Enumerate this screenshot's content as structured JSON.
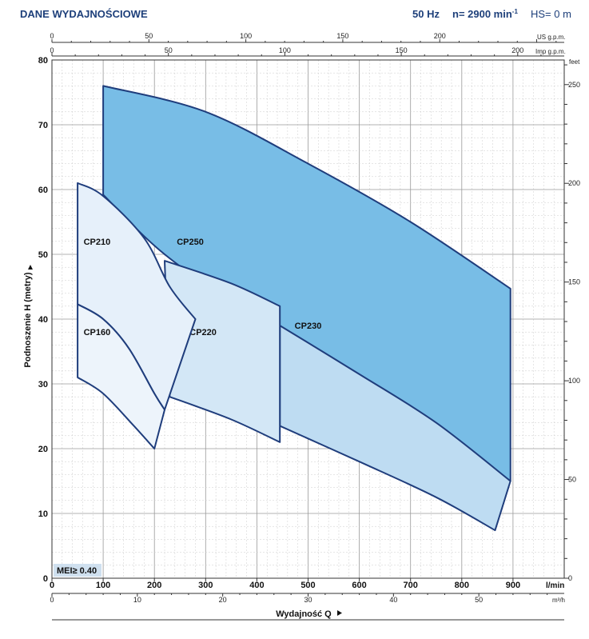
{
  "header": {
    "title": "DANE WYDAJNOŚCIOWE",
    "freq": "50 Hz",
    "speed_prefix": "n= 2900 min",
    "speed_exp": "-1",
    "hs": "HS= 0 m"
  },
  "chart_data": {
    "type": "area",
    "xlabel": "Wydajność Q",
    "ylabel": "Podnoszenie H (metry)",
    "x_unit": "l/min",
    "y_unit": "",
    "xlim": [
      0,
      1000
    ],
    "ylim": [
      0,
      80
    ],
    "x_ticks": [
      0,
      100,
      200,
      300,
      400,
      500,
      600,
      700,
      800,
      900
    ],
    "y_ticks": [
      0,
      10,
      20,
      30,
      40,
      50,
      60,
      70,
      80
    ],
    "secondary_axes": {
      "bottom_m3h": {
        "unit": "m³/h",
        "ticks": [
          0,
          10,
          20,
          30,
          40,
          50
        ]
      },
      "top_us_gpm": {
        "unit": "US g.p.m.",
        "ticks": [
          0,
          50,
          100,
          150,
          200
        ]
      },
      "top_imp_gpm": {
        "unit": "Imp g.p.m.",
        "ticks": [
          0,
          50,
          100,
          150,
          200
        ]
      },
      "right_feet": {
        "unit": "feet",
        "ticks": [
          0,
          50,
          100,
          150,
          200,
          250
        ]
      }
    },
    "annotation": "MEI≥ 0.40",
    "series": [
      {
        "name": "CP250",
        "color": "#78bde6",
        "top": [
          [
            100,
            76
          ],
          [
            300,
            72
          ],
          [
            500,
            64
          ],
          [
            700,
            55
          ],
          [
            895,
            44.7
          ]
        ],
        "bottom": [
          [
            100,
            59.2
          ],
          [
            220,
            50
          ],
          [
            400,
            40
          ],
          [
            600,
            30
          ],
          [
            800,
            20
          ],
          [
            895,
            15
          ]
        ]
      },
      {
        "name": "CP230",
        "color": "#bedcf2",
        "top": [
          [
            445,
            39
          ],
          [
            600,
            31.5
          ],
          [
            750,
            24
          ],
          [
            895,
            15
          ]
        ],
        "bottom": [
          [
            445,
            23.5
          ],
          [
            600,
            18
          ],
          [
            750,
            12.5
          ],
          [
            865,
            7.4
          ]
        ]
      },
      {
        "name": "CP220",
        "color": "#d3e7f6",
        "top": [
          [
            220,
            49
          ],
          [
            350,
            45.5
          ],
          [
            445,
            42
          ]
        ],
        "bottom": [
          [
            230,
            28
          ],
          [
            350,
            24.5
          ],
          [
            445,
            21
          ]
        ]
      },
      {
        "name": "CP210",
        "color": "#e6f0fa",
        "top": [
          [
            50,
            61
          ],
          [
            100,
            59
          ],
          [
            180,
            52.5
          ],
          [
            230,
            45
          ],
          [
            280,
            40
          ]
        ],
        "bottom": [
          [
            50,
            42.3
          ],
          [
            100,
            40
          ],
          [
            150,
            35.5
          ],
          [
            200,
            28.5
          ],
          [
            220,
            26
          ]
        ]
      },
      {
        "name": "CP160",
        "color": "#edf4fb",
        "top": [
          [
            50,
            42.3
          ],
          [
            100,
            40
          ],
          [
            150,
            35.5
          ],
          [
            200,
            28.5
          ],
          [
            220,
            26
          ]
        ],
        "bottom": [
          [
            50,
            31
          ],
          [
            100,
            28.5
          ],
          [
            160,
            23.5
          ],
          [
            200,
            20
          ]
        ]
      }
    ]
  }
}
